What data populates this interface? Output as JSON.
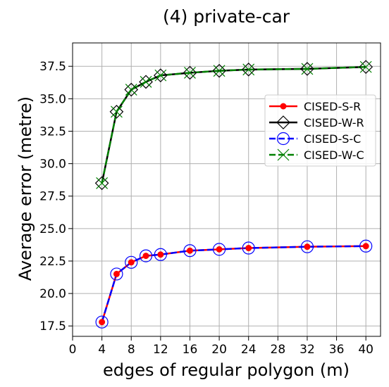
{
  "chart_data": {
    "type": "line",
    "title": "(4) private-car",
    "xlabel": "edges of regular polygon (m)",
    "ylabel": "Average error (metre)",
    "xlim": [
      0,
      42
    ],
    "ylim": [
      16.7,
      39.3
    ],
    "xticks": [
      0,
      4,
      8,
      12,
      16,
      20,
      24,
      28,
      32,
      36,
      40
    ],
    "yticks": [
      17.5,
      20.0,
      22.5,
      25.0,
      27.5,
      30.0,
      32.5,
      35.0,
      37.5
    ],
    "grid": true,
    "legend_position": "right",
    "x": [
      4,
      6,
      8,
      10,
      12,
      16,
      20,
      24,
      32,
      40
    ],
    "series": [
      {
        "name": "CISED-S-R",
        "color": "#ff0000",
        "line": "solid",
        "marker": "filled-circle",
        "values": [
          17.8,
          21.5,
          22.4,
          22.9,
          23.0,
          23.3,
          23.4,
          23.5,
          23.6,
          23.65
        ]
      },
      {
        "name": "CISED-W-R",
        "color": "#000000",
        "line": "solid",
        "marker": "diamond",
        "values": [
          28.5,
          34.0,
          35.7,
          36.3,
          36.8,
          37.0,
          37.15,
          37.25,
          37.3,
          37.45
        ]
      },
      {
        "name": "CISED-S-C",
        "color": "#0000ff",
        "line": "dashed",
        "marker": "hollow-circle",
        "values": [
          17.8,
          21.5,
          22.4,
          22.9,
          23.0,
          23.3,
          23.4,
          23.5,
          23.6,
          23.65
        ]
      },
      {
        "name": "CISED-W-C",
        "color": "#008000",
        "line": "dashed",
        "marker": "x",
        "values": [
          28.5,
          34.0,
          35.7,
          36.3,
          36.8,
          37.0,
          37.15,
          37.25,
          37.3,
          37.45
        ]
      }
    ]
  }
}
